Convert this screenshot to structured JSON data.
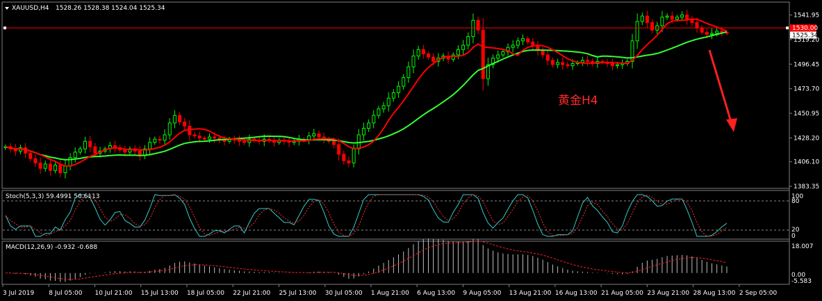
{
  "window": {
    "symbol_label": "XAUUSD,H4",
    "ohlc": "1528.26 1528.38 1524.04 1525.34"
  },
  "annotation": {
    "text": "黄金H4",
    "color": "#ff2a2a"
  },
  "colors": {
    "background": "#000000",
    "bull": "#00ff00",
    "bear": "#ff0000",
    "ma_fast": "#ff0000",
    "ma_slow": "#33ff33",
    "hline": "#ff0000",
    "stoch_main": "#33cccc",
    "stoch_signal": "#ff3333",
    "macd_hist": "#c0c0c0",
    "macd_signal": "#ff2020"
  },
  "price_panel": {
    "ticks": [
      "1541.95",
      "1519.20",
      "1496.45",
      "1473.70",
      "1450.95",
      "1428.20",
      "1406.10",
      "1383.35"
    ],
    "hline_value": "1530.00",
    "current_value": "1525.34"
  },
  "stoch_panel": {
    "label": "Stoch(5,3,3) 59.4991 56.6113",
    "ticks": [
      "100",
      "80",
      "20",
      "0"
    ]
  },
  "macd_panel": {
    "label": "MACD(12,26,9) -0.932 -0.688",
    "ticks": [
      "18.007",
      "0.00",
      "-5.583"
    ]
  },
  "time_axis": [
    "3 Jul 2019",
    "8 Jul 05:00",
    "10 Jul 21:00",
    "15 Jul 13:00",
    "18 Jul 05:00",
    "22 Jul 21:00",
    "25 Jul 13:00",
    "30 Jul 05:00",
    "1 Aug 21:00",
    "6 Aug 13:00",
    "9 Aug 05:00",
    "13 Aug 21:00",
    "16 Aug 13:00",
    "21 Aug 05:00",
    "23 Aug 21:00",
    "28 Aug 13:00",
    "2 Sep 05:00"
  ],
  "chart_data": {
    "type": "candlestick",
    "symbol": "XAUUSD",
    "timeframe": "H4",
    "ylim": [
      1383.35,
      1552
    ],
    "close_series": [
      1420,
      1418,
      1416,
      1419,
      1414,
      1409,
      1405,
      1400,
      1404,
      1398,
      1403,
      1396,
      1402,
      1410,
      1415,
      1418,
      1425,
      1420,
      1414,
      1416,
      1418,
      1421,
      1419,
      1417,
      1415,
      1418,
      1416,
      1412,
      1418,
      1424,
      1427,
      1426,
      1431,
      1442,
      1449,
      1443,
      1439,
      1431,
      1430,
      1428,
      1427,
      1429,
      1428,
      1426,
      1425,
      1427,
      1426,
      1425,
      1424,
      1427,
      1426,
      1425,
      1427,
      1426,
      1424,
      1426,
      1425,
      1424,
      1425,
      1427,
      1426,
      1430,
      1432,
      1429,
      1427,
      1425,
      1422,
      1413,
      1407,
      1405,
      1418,
      1431,
      1437,
      1442,
      1449,
      1455,
      1458,
      1465,
      1470,
      1476,
      1484,
      1494,
      1504,
      1510,
      1506,
      1503,
      1499,
      1502,
      1504,
      1501,
      1505,
      1510,
      1514,
      1522,
      1537,
      1528,
      1483,
      1496,
      1502,
      1505,
      1508,
      1512,
      1514,
      1518,
      1520,
      1517,
      1513,
      1509,
      1505,
      1500,
      1496,
      1498,
      1496,
      1495,
      1497,
      1498,
      1500,
      1499,
      1497,
      1499,
      1498,
      1497,
      1495,
      1496,
      1497,
      1499,
      1518,
      1536,
      1541,
      1535,
      1528,
      1532,
      1540,
      1541,
      1538,
      1540,
      1542,
      1538,
      1535,
      1530,
      1526,
      1524,
      1525,
      1527,
      1526,
      1525
    ],
    "ma_fast": {
      "name": "",
      "color": "#ff0000"
    },
    "ma_slow": {
      "name": "",
      "color": "#33ff33"
    },
    "stochastic": {
      "k": 59.4991,
      "d": 56.6113,
      "levels": [
        80,
        20
      ]
    },
    "macd": {
      "main": -0.932,
      "signal": -0.688,
      "ylim": [
        -5.583,
        18.007
      ]
    }
  }
}
